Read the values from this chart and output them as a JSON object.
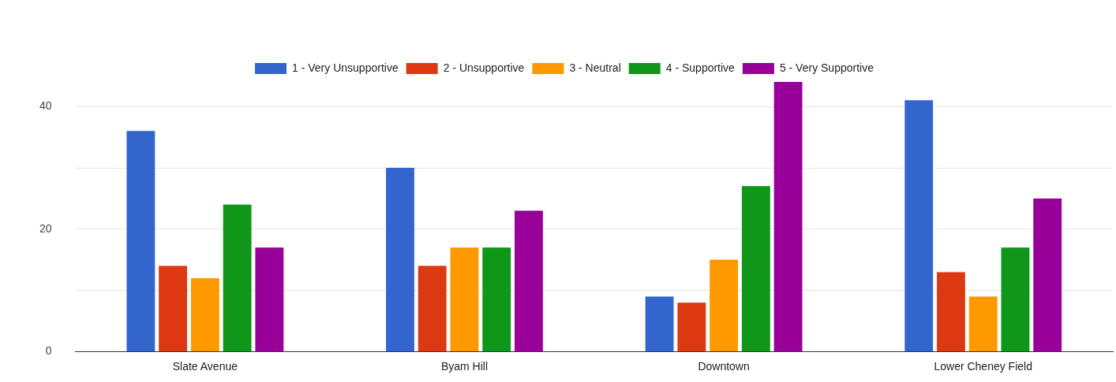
{
  "chart_data": {
    "type": "bar",
    "categories": [
      "Slate Avenue",
      "Byam Hill",
      "Downtown",
      "Lower Cheney Field"
    ],
    "series": [
      {
        "name": "1 - Very Unsupportive",
        "color": "#3366cc",
        "values": [
          36,
          30,
          9,
          41
        ]
      },
      {
        "name": "2 - Unsupportive",
        "color": "#dc3912",
        "values": [
          14,
          14,
          8,
          13
        ]
      },
      {
        "name": "3 - Neutral",
        "color": "#ff9900",
        "values": [
          12,
          17,
          15,
          9
        ]
      },
      {
        "name": "4 - Supportive",
        "color": "#109618",
        "values": [
          24,
          17,
          27,
          17
        ]
      },
      {
        "name": "5 - Very Supportive",
        "color": "#990099",
        "values": [
          17,
          23,
          44,
          25
        ]
      }
    ],
    "ylim": [
      0,
      44
    ],
    "yticks": [
      0,
      {
        "value": 10,
        "label": null
      },
      20,
      {
        "value": 30,
        "label": null
      },
      40
    ],
    "grid": "y",
    "legend": "top"
  }
}
